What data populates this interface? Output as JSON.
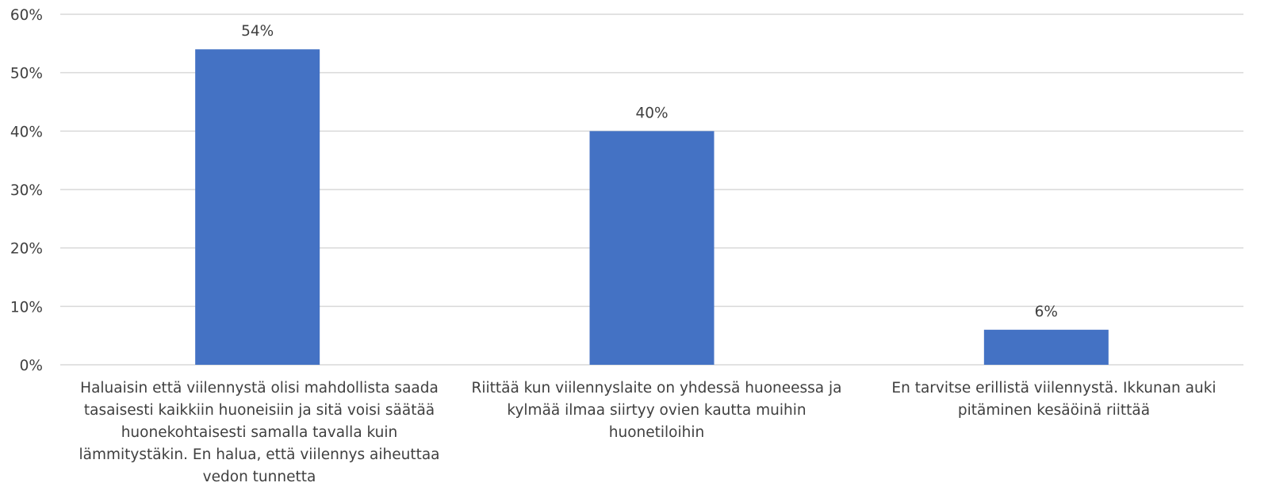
{
  "chart_data": {
    "type": "bar",
    "title": "",
    "xlabel": "",
    "ylabel": "",
    "categories": [
      "Haluaisin että viilennystä olisi mahdollista saada tasaisesti kaikkiin huoneisiin ja sitä voisi säätää huonekohtaisesti samalla tavalla kuin lämmitystäkin. En halua, että viilennys aiheuttaa vedon tunnetta",
      "Riittää kun viilennyslaite on yhdessä huoneessa ja kylmää ilmaa siirtyy ovien kautta muihin huonetiloihin",
      "En tarvitse erillistä viilennystä. Ikkunan auki pitäminen kesäöinä riittää"
    ],
    "values": [
      54,
      40,
      6
    ],
    "data_labels": [
      "54%",
      "40%",
      "6%"
    ],
    "ylim": [
      0,
      60
    ],
    "y_ticks": [
      "0%",
      "10%",
      "20%",
      "30%",
      "40%",
      "50%",
      "60%"
    ],
    "grid": true,
    "legend": "none",
    "colors": {
      "bar": "#4472C4",
      "grid": "#D9D9D9",
      "text": "#404040"
    }
  }
}
